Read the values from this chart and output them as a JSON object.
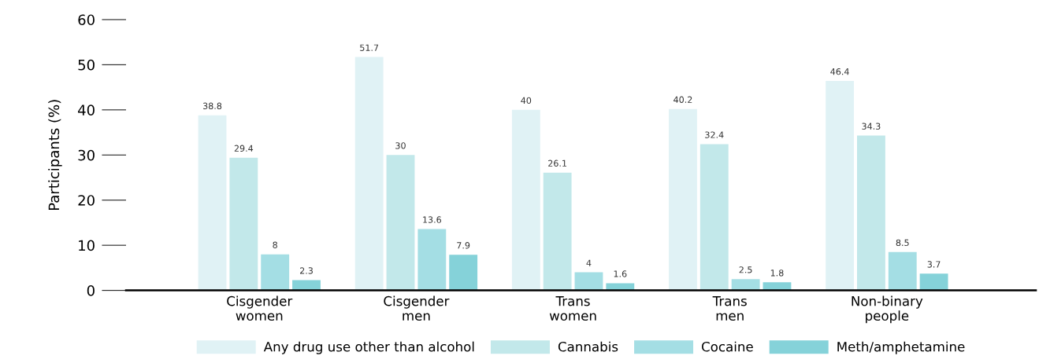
{
  "chart_data": {
    "type": "bar",
    "ylabel": "Participants (%)",
    "categories": [
      "Cisgender\nwomen",
      "Cisgender\nmen",
      "Trans\nwomen",
      "Trans\nmen",
      "Non-binary\npeople"
    ],
    "series": [
      {
        "name": "Any drug use other than alcohol",
        "color": "#e0f2f5",
        "values": [
          38.8,
          51.7,
          40,
          40.2,
          46.4
        ]
      },
      {
        "name": "Cannabis",
        "color": "#c2e8ea",
        "values": [
          29.4,
          30,
          26.1,
          32.4,
          34.3
        ]
      },
      {
        "name": "Cocaine",
        "color": "#a4dee4",
        "values": [
          8,
          13.6,
          4,
          2.5,
          8.5
        ]
      },
      {
        "name": "Meth/amphetamine",
        "color": "#85d2d9",
        "values": [
          2.3,
          7.9,
          1.6,
          1.8,
          3.7
        ]
      }
    ],
    "ylim": [
      0,
      60
    ],
    "yticks": [
      0,
      10,
      20,
      30,
      40,
      50,
      60
    ],
    "data_labels": true,
    "grid": false,
    "legend": "bottom"
  }
}
